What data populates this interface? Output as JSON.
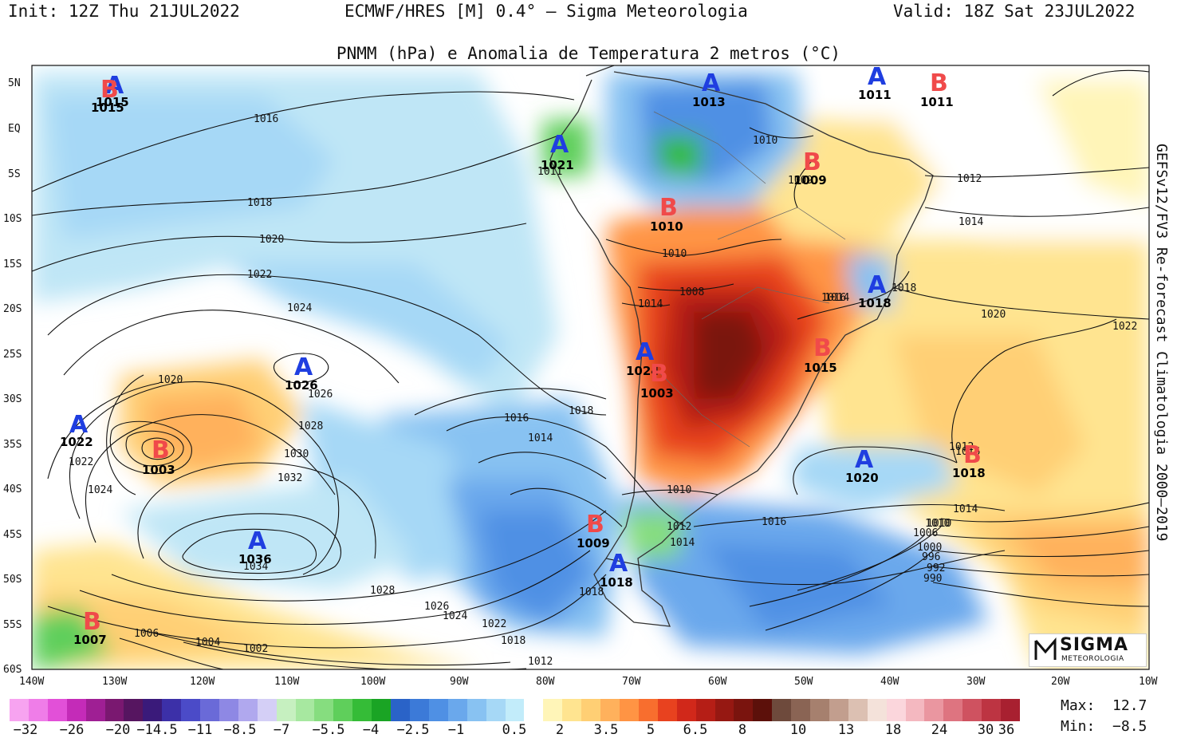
{
  "header": {
    "init": "Init: 12Z Thu 21JUL2022",
    "model": "ECMWF/HRES [M] 0.4° – Sigma Meteorologia",
    "valid": "Valid: 18Z Sat 23JUL2022"
  },
  "subtitle": "PNMM (hPa) e Anomalia de Temperatura 2 metros (°C)",
  "side_label": "GEFSv12/FV3 Re-forecast Climatologia 2000–2019",
  "lat_labels": [
    "5N",
    "EQ",
    "5S",
    "10S",
    "15S",
    "20S",
    "25S",
    "30S",
    "35S",
    "40S",
    "45S",
    "50S",
    "55S",
    "60S"
  ],
  "lon_labels": [
    "140W",
    "130W",
    "120W",
    "110W",
    "100W",
    "90W",
    "80W",
    "70W",
    "60W",
    "50W",
    "40W",
    "30W",
    "20W",
    "10W"
  ],
  "pressure_centers": [
    {
      "type": "A",
      "value": "1015"
    },
    {
      "type": "B",
      "value": "1015"
    },
    {
      "type": "A",
      "value": "1013"
    },
    {
      "type": "A",
      "value": "1011"
    },
    {
      "type": "B",
      "value": "1011"
    },
    {
      "type": "A",
      "value": "1021"
    },
    {
      "type": "B",
      "value": "1009"
    },
    {
      "type": "B",
      "value": "1010"
    },
    {
      "type": "A",
      "value": "1018"
    },
    {
      "type": "A",
      "value": "1026"
    },
    {
      "type": "A",
      "value": "1024"
    },
    {
      "type": "B",
      "value": "1003"
    },
    {
      "type": "B",
      "value": "1015"
    },
    {
      "type": "A",
      "value": "1022"
    },
    {
      "type": "B",
      "value": "1003"
    },
    {
      "type": "A",
      "value": "1020"
    },
    {
      "type": "B",
      "value": "1018"
    },
    {
      "type": "A",
      "value": "1036"
    },
    {
      "type": "B",
      "value": "1009"
    },
    {
      "type": "A",
      "value": "1018"
    },
    {
      "type": "B",
      "value": "1007"
    }
  ],
  "isobar_labels": [
    "1016",
    "1018",
    "1020",
    "1022",
    "1024",
    "1026",
    "1028",
    "1030",
    "1032",
    "1034",
    "1024",
    "1022",
    "1020",
    "1028",
    "1026",
    "1024",
    "1022",
    "1018",
    "1016",
    "1014",
    "1012",
    "1010",
    "1008",
    "1010",
    "1012",
    "1014",
    "1016",
    "1018",
    "1020",
    "1022",
    "1010",
    "1012",
    "1014",
    "1018",
    "1016",
    "1014",
    "1010",
    "1012",
    "1016",
    "1014",
    "1010",
    "1006",
    "1000",
    "996",
    "992",
    "990",
    "1006",
    "1004",
    "1002",
    "1011",
    "1009",
    "1014",
    "1018"
  ],
  "legend": {
    "labels": [
      "-32",
      "-26",
      "-20",
      "-14.5",
      "-11",
      "-8.5",
      "-7",
      "-5.5",
      "-4",
      "-2.5",
      "-1",
      "0.5",
      "2",
      "3.5",
      "5",
      "6.5",
      "8",
      "10",
      "13",
      "18",
      "24",
      "30",
      "36"
    ],
    "colors": [
      "#f7a3f0",
      "#ef7de8",
      "#e250d8",
      "#c42bb8",
      "#9f1f94",
      "#7a1870",
      "#561560",
      "#3a1a7a",
      "#3c30a8",
      "#4b4bc8",
      "#6a6ad8",
      "#8e88e4",
      "#b0a8ee",
      "#d4cff6",
      "#c6f0c0",
      "#a7e8a0",
      "#86dd7f",
      "#5fcf5b",
      "#35bc37",
      "#1aa424",
      "#2a63c8",
      "#3c7ad8",
      "#4f90e4",
      "#6aa8ec",
      "#88c2f2",
      "#a6d8f6",
      "#c2ecfa",
      "#ffffff",
      "#fff5b8",
      "#ffe490",
      "#ffcf74",
      "#ffb15c",
      "#ff9444",
      "#f86e2e",
      "#e8421f",
      "#d1281a",
      "#b51e16",
      "#961812",
      "#7a140e",
      "#5c100a",
      "#6e4a3c",
      "#8a6454",
      "#a6806e",
      "#c29e8e",
      "#dcc0b2",
      "#f4e2da",
      "#fbd6dc",
      "#f4b8c0",
      "#ea96a0",
      "#de7480",
      "#cf5260",
      "#bd3442",
      "#a82030"
    ]
  },
  "stats": {
    "max_label": "Max:",
    "max_value": "12.7",
    "min_label": "Min:",
    "min_value": "−8.5"
  },
  "logo": {
    "title": "SIGMA",
    "subtitle": "METEOROLOGIA"
  },
  "colors": {
    "high": "#1f3ee0",
    "low": "#f04a4a"
  }
}
